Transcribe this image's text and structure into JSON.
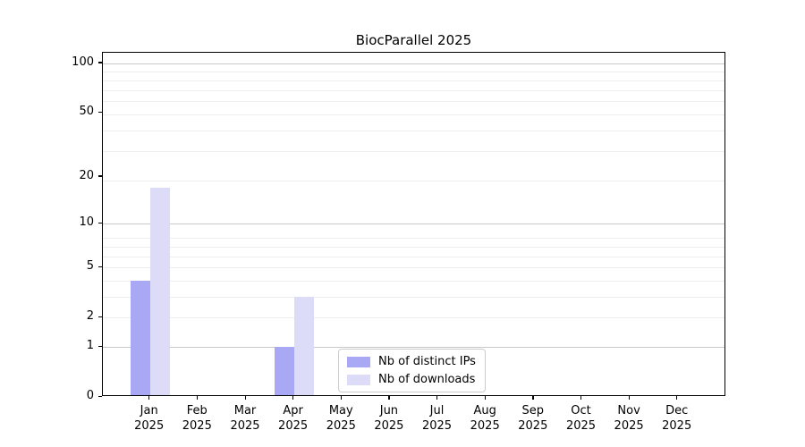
{
  "chart_data": {
    "type": "bar",
    "title": "BiocParallel 2025",
    "categories": [
      "Jan",
      "Feb",
      "Mar",
      "Apr",
      "May",
      "Jun",
      "Jul",
      "Aug",
      "Sep",
      "Oct",
      "Nov",
      "Dec"
    ],
    "year_label": "2025",
    "series": [
      {
        "name": "Nb of distinct IPs",
        "color": "#a8a8f5",
        "values": [
          4,
          0,
          0,
          1,
          0,
          0,
          0,
          0,
          0,
          0,
          0,
          0
        ]
      },
      {
        "name": "Nb of downloads",
        "color": "#dcdcf8",
        "values": [
          17,
          0,
          0,
          3,
          0,
          0,
          0,
          0,
          0,
          0,
          0,
          0
        ]
      }
    ],
    "xlabel": "",
    "ylabel": "",
    "yscale": "log10(1+x)",
    "yticks": [
      0,
      1,
      2,
      5,
      10,
      20,
      50,
      100
    ],
    "ylim": [
      0,
      116
    ],
    "grid": {
      "major_values": [
        1,
        10,
        100
      ],
      "minor_values": [
        2,
        3,
        4,
        5,
        6,
        7,
        8,
        19,
        29,
        39,
        49,
        59,
        69,
        79,
        89
      ],
      "major_color": "#c9c9c9",
      "minor_color": "#ededed"
    },
    "legend_position": "lower center inside plot",
    "background_color": "#ffffff",
    "spine_color": "#000000"
  }
}
